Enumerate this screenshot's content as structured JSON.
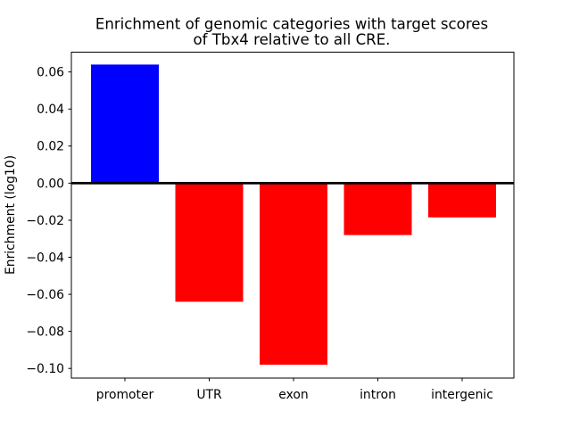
{
  "page": {
    "background_color": "#ffffff",
    "text_color": "#000000"
  },
  "chart_data": {
    "type": "bar",
    "title_lines": [
      "Enrichment of genomic categories with target scores",
      "of Tbx4 relative to all CRE."
    ],
    "ylabel": "Enrichment (log10)",
    "xlabel": "",
    "categories": [
      "promoter",
      "UTR",
      "exon",
      "intron",
      "intergenic"
    ],
    "values": [
      0.064,
      -0.064,
      -0.098,
      -0.028,
      -0.0185
    ],
    "bar_colors": [
      "#0000ff",
      "#ff0000",
      "#ff0000",
      "#ff0000",
      "#ff0000"
    ],
    "positive_color": "#0000ff",
    "negative_color": "#ff0000",
    "yticks": [
      0.06,
      0.04,
      0.02,
      0.0,
      -0.02,
      -0.04,
      -0.06,
      -0.08,
      -0.1
    ],
    "ytick_labels": [
      "0.06",
      "0.04",
      "0.02",
      "0.00",
      "−0.02",
      "−0.04",
      "−0.06",
      "−0.08",
      "−0.10"
    ],
    "ylim": [
      -0.1052,
      0.0707
    ],
    "grid": false,
    "legend": null,
    "zero_line": true,
    "axis_color": "#000000"
  }
}
